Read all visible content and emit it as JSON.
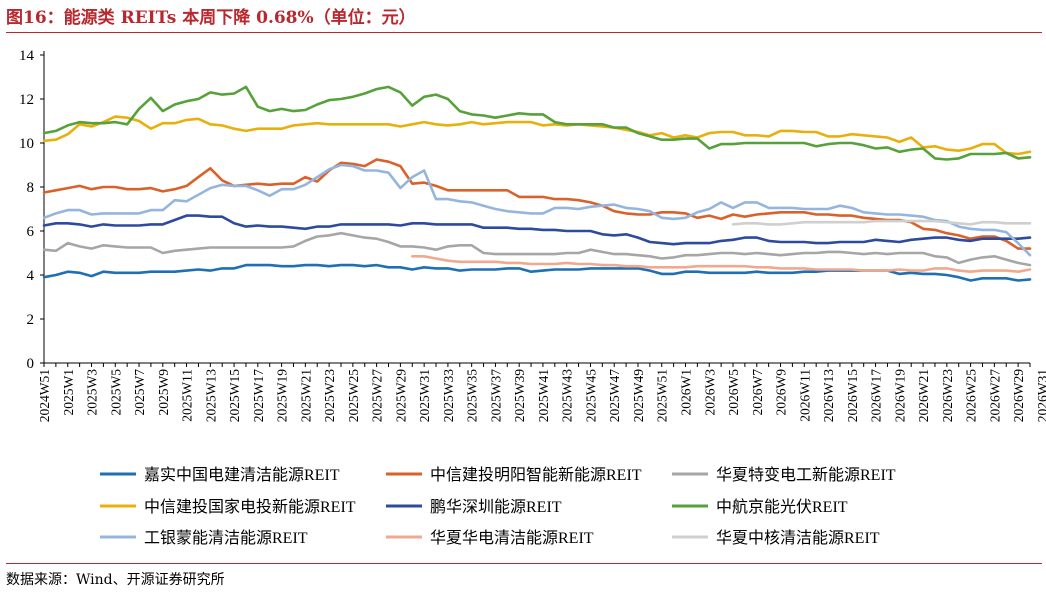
{
  "header": {
    "title": "图16：能源类 REITs 本周下降 0.68%（单位：元）"
  },
  "footer": {
    "source": "数据来源：Wind、开源证券研究所"
  },
  "chart_data": {
    "type": "line",
    "ylim": [
      0,
      14
    ],
    "yticks": [
      0,
      2,
      4,
      6,
      8,
      10,
      12,
      14
    ],
    "x": [
      "2024W51",
      "2025W1",
      "2025W2",
      "2025W3",
      "2025W4",
      "2025W5",
      "2025W6",
      "2025W7",
      "2025W8",
      "2025W9",
      "2025W10",
      "2025W11",
      "2025W12",
      "2025W13",
      "2025W14",
      "2025W15",
      "2025W16",
      "2025W17",
      "2025W18",
      "2025W19",
      "2025W20",
      "2025W21",
      "2025W22",
      "2025W23",
      "2025W24",
      "2025W25",
      "2025W26",
      "2025W27",
      "2025W28",
      "2025W29",
      "2025W30",
      "2025W31",
      "2025W32",
      "2025W33",
      "2025W34",
      "2025W35",
      "2025W36",
      "2025W37",
      "2025W38",
      "2025W39",
      "2025W40",
      "2025W41",
      "2025W42",
      "2025W43",
      "2025W44",
      "2025W45",
      "2025W46",
      "2025W47",
      "2025W48",
      "2025W49",
      "2025W50",
      "2025W51",
      "2025W52",
      "2026W1",
      "2026W2",
      "2026W3",
      "2026W4",
      "2026W5",
      "2026W6",
      "2026W7",
      "2026W8",
      "2026W9",
      "2026W10",
      "2026W11",
      "2026W12",
      "2026W13",
      "2026W14",
      "2026W15",
      "2026W16",
      "2026W17",
      "2026W18",
      "2026W19",
      "2026W20",
      "2026W21",
      "2026W22",
      "2026W23",
      "2026W24",
      "2026W25",
      "2026W26",
      "2026W27",
      "2026W28",
      "2026W29",
      "2026W30",
      "2026W31"
    ],
    "xtick_labels": [
      "2024W51",
      "2025W1",
      "2025W3",
      "2025W5",
      "2025W7",
      "2025W9",
      "2025W11",
      "2025W13",
      "2025W15",
      "2025W17",
      "2025W19",
      "2025W21",
      "2025W23",
      "2025W25",
      "2025W27",
      "2025W29",
      "2025W31",
      "2025W33",
      "2025W35",
      "2025W37",
      "2025W39",
      "2025W41",
      "2025W43",
      "2025W45",
      "2025W47",
      "2025W49",
      "2025W51",
      "2026W1",
      "2026W3",
      "2026W5",
      "2026W7",
      "2026W9",
      "2026W11",
      "2026W13",
      "2026W15",
      "2026W17",
      "2026W19",
      "2026W21",
      "2026W23",
      "2026W25",
      "2026W27",
      "2026W29",
      "2026W31"
    ],
    "series": [
      {
        "name": "嘉实中国电建清洁能源REIT",
        "color": "#1f6fb4",
        "values": [
          3.9,
          4.0,
          4.15,
          4.1,
          3.95,
          4.15,
          4.1,
          4.1,
          4.1,
          4.15,
          4.15,
          4.15,
          4.2,
          4.25,
          4.2,
          4.3,
          4.3,
          4.45,
          4.45,
          4.45,
          4.4,
          4.4,
          4.45,
          4.45,
          4.4,
          4.45,
          4.45,
          4.4,
          4.45,
          4.35,
          4.35,
          4.25,
          4.35,
          4.3,
          4.3,
          4.2,
          4.25,
          4.25,
          4.25,
          4.3,
          4.3,
          4.15,
          4.2,
          4.25,
          4.25,
          4.25,
          4.3,
          4.3,
          4.3,
          4.3,
          4.3,
          4.2,
          4.05,
          4.05,
          4.15,
          4.15,
          4.1,
          4.1,
          4.1,
          4.1,
          4.15,
          4.1,
          4.1,
          4.1,
          4.15,
          4.15,
          4.2,
          4.2,
          4.2,
          4.2,
          4.2,
          4.2,
          4.05,
          4.1,
          4.05,
          4.05,
          4.0,
          3.9,
          3.75,
          3.85,
          3.85,
          3.85,
          3.75,
          3.8
        ]
      },
      {
        "name": "中信建投明阳智能新能源REIT",
        "color": "#d9622b",
        "values": [
          7.75,
          7.85,
          7.95,
          8.05,
          7.9,
          8.0,
          8.0,
          7.9,
          7.9,
          7.95,
          7.8,
          7.9,
          8.05,
          8.45,
          8.85,
          8.3,
          8.05,
          8.1,
          8.15,
          8.1,
          8.15,
          8.15,
          8.45,
          8.25,
          8.75,
          9.1,
          9.05,
          8.95,
          9.25,
          9.15,
          8.95,
          8.15,
          8.2,
          8.05,
          7.85,
          7.85,
          7.85,
          7.85,
          7.85,
          7.85,
          7.55,
          7.55,
          7.55,
          7.45,
          7.45,
          7.4,
          7.3,
          7.15,
          6.9,
          6.8,
          6.75,
          6.75,
          6.85,
          6.85,
          6.8,
          6.6,
          6.7,
          6.55,
          6.75,
          6.65,
          6.75,
          6.8,
          6.85,
          6.85,
          6.85,
          6.75,
          6.75,
          6.7,
          6.7,
          6.6,
          6.55,
          6.5,
          6.5,
          6.4,
          6.1,
          6.05,
          5.9,
          5.8,
          5.65,
          5.75,
          5.75,
          5.55,
          5.2,
          5.2
        ]
      },
      {
        "name": "华夏特变电工新能源REIT",
        "color": "#a6a6a6",
        "values": [
          5.15,
          5.1,
          5.45,
          5.3,
          5.2,
          5.35,
          5.3,
          5.25,
          5.25,
          5.25,
          5.0,
          5.1,
          5.15,
          5.2,
          5.25,
          5.25,
          5.25,
          5.25,
          5.25,
          5.25,
          5.25,
          5.3,
          5.55,
          5.75,
          5.8,
          5.9,
          5.8,
          5.7,
          5.65,
          5.5,
          5.3,
          5.3,
          5.25,
          5.15,
          5.3,
          5.35,
          5.35,
          5.0,
          4.95,
          4.95,
          4.95,
          4.95,
          4.95,
          4.95,
          5.0,
          5.0,
          5.15,
          5.05,
          4.95,
          4.95,
          4.9,
          4.85,
          4.75,
          4.8,
          4.9,
          4.9,
          4.95,
          5.0,
          5.0,
          4.95,
          5.0,
          4.95,
          4.9,
          4.95,
          5.0,
          5.0,
          5.05,
          5.05,
          5.0,
          4.95,
          5.0,
          4.95,
          5.0,
          5.0,
          5.0,
          4.85,
          4.8,
          4.55,
          4.7,
          4.8,
          4.85,
          4.7,
          4.55,
          4.45
        ]
      },
      {
        "name": "中信建投国家电投新能源REIT",
        "color": "#e8b00d",
        "values": [
          10.1,
          10.15,
          10.4,
          10.85,
          10.75,
          10.95,
          11.2,
          11.15,
          11.0,
          10.65,
          10.9,
          10.9,
          11.05,
          11.1,
          10.85,
          10.8,
          10.65,
          10.55,
          10.65,
          10.65,
          10.65,
          10.8,
          10.85,
          10.9,
          10.85,
          10.85,
          10.85,
          10.85,
          10.85,
          10.85,
          10.75,
          10.85,
          10.95,
          10.85,
          10.8,
          10.85,
          10.95,
          10.85,
          10.9,
          10.95,
          10.95,
          10.95,
          10.8,
          10.85,
          10.8,
          10.85,
          10.8,
          10.75,
          10.7,
          10.6,
          10.5,
          10.35,
          10.45,
          10.25,
          10.35,
          10.25,
          10.45,
          10.5,
          10.5,
          10.35,
          10.35,
          10.3,
          10.55,
          10.55,
          10.5,
          10.5,
          10.3,
          10.3,
          10.4,
          10.35,
          10.3,
          10.25,
          10.05,
          10.25,
          9.8,
          9.85,
          9.7,
          9.65,
          9.75,
          9.95,
          9.95,
          9.55,
          9.5,
          9.6
        ]
      },
      {
        "name": "鹏华深圳能源REIT",
        "color": "#2e4a9e",
        "values": [
          6.25,
          6.35,
          6.35,
          6.3,
          6.2,
          6.3,
          6.25,
          6.25,
          6.25,
          6.3,
          6.3,
          6.5,
          6.7,
          6.7,
          6.65,
          6.65,
          6.35,
          6.2,
          6.25,
          6.2,
          6.2,
          6.15,
          6.1,
          6.2,
          6.2,
          6.3,
          6.3,
          6.3,
          6.3,
          6.3,
          6.25,
          6.35,
          6.35,
          6.3,
          6.3,
          6.3,
          6.3,
          6.15,
          6.15,
          6.15,
          6.1,
          6.1,
          6.05,
          6.05,
          6.0,
          6.0,
          6.0,
          5.85,
          5.8,
          5.85,
          5.7,
          5.5,
          5.45,
          5.4,
          5.45,
          5.45,
          5.45,
          5.55,
          5.6,
          5.7,
          5.7,
          5.55,
          5.5,
          5.5,
          5.5,
          5.45,
          5.45,
          5.5,
          5.5,
          5.5,
          5.6,
          5.55,
          5.5,
          5.6,
          5.65,
          5.7,
          5.7,
          5.6,
          5.55,
          5.65,
          5.65,
          5.65,
          5.65,
          5.7
        ]
      },
      {
        "name": "中航京能光伏REIT",
        "color": "#57a13b",
        "values": [
          10.45,
          10.55,
          10.8,
          10.95,
          10.9,
          10.9,
          10.95,
          10.85,
          11.55,
          12.05,
          11.45,
          11.75,
          11.9,
          12.0,
          12.3,
          12.2,
          12.25,
          12.55,
          11.65,
          11.45,
          11.55,
          11.45,
          11.5,
          11.75,
          11.95,
          12.0,
          12.1,
          12.25,
          12.45,
          12.55,
          12.3,
          11.7,
          12.1,
          12.2,
          12.0,
          11.45,
          11.3,
          11.25,
          11.15,
          11.25,
          11.35,
          11.3,
          11.3,
          10.95,
          10.85,
          10.85,
          10.85,
          10.85,
          10.7,
          10.7,
          10.45,
          10.3,
          10.15,
          10.15,
          10.2,
          10.2,
          9.75,
          9.95,
          9.95,
          10.0,
          10.0,
          10.0,
          10.0,
          10.0,
          10.0,
          9.85,
          9.95,
          10.0,
          10.0,
          9.9,
          9.75,
          9.8,
          9.6,
          9.7,
          9.75,
          9.3,
          9.25,
          9.3,
          9.5,
          9.5,
          9.5,
          9.55,
          9.3,
          9.35
        ]
      },
      {
        "name": "工银蒙能清洁能源REIT",
        "color": "#95b5df",
        "values": [
          6.6,
          6.8,
          6.95,
          6.95,
          6.75,
          6.8,
          6.8,
          6.8,
          6.8,
          6.95,
          6.95,
          7.4,
          7.35,
          7.65,
          7.95,
          8.1,
          8.05,
          8.05,
          7.85,
          7.6,
          7.9,
          7.9,
          8.1,
          8.45,
          8.8,
          9.0,
          8.95,
          8.75,
          8.75,
          8.65,
          7.95,
          8.45,
          8.75,
          7.45,
          7.45,
          7.35,
          7.3,
          7.15,
          7.0,
          6.9,
          6.85,
          6.8,
          6.8,
          7.05,
          7.05,
          7.0,
          7.1,
          7.15,
          7.2,
          7.05,
          7.0,
          6.9,
          6.6,
          6.55,
          6.6,
          6.85,
          7.0,
          7.3,
          7.05,
          7.3,
          7.3,
          7.05,
          7.05,
          7.05,
          7.0,
          7.0,
          7.0,
          7.15,
          7.05,
          6.85,
          6.8,
          6.75,
          6.75,
          6.7,
          6.65,
          6.5,
          6.45,
          6.2,
          6.1,
          6.05,
          6.05,
          5.95,
          5.45,
          4.9
        ]
      },
      {
        "name": "华夏华电清洁能源REIT",
        "color": "#f0a98e",
        "values": [
          null,
          null,
          null,
          null,
          null,
          null,
          null,
          null,
          null,
          null,
          null,
          null,
          null,
          null,
          null,
          null,
          null,
          null,
          null,
          null,
          null,
          null,
          null,
          null,
          null,
          null,
          null,
          null,
          null,
          null,
          null,
          4.85,
          4.85,
          4.75,
          4.65,
          4.6,
          4.6,
          4.6,
          4.6,
          4.55,
          4.55,
          4.5,
          4.5,
          4.5,
          4.55,
          4.5,
          4.5,
          4.45,
          4.45,
          4.4,
          4.4,
          4.35,
          4.35,
          4.35,
          4.35,
          4.4,
          4.4,
          4.4,
          4.4,
          4.4,
          4.35,
          4.35,
          4.3,
          4.3,
          4.3,
          4.25,
          4.25,
          4.25,
          4.25,
          4.2,
          4.2,
          4.2,
          4.25,
          4.2,
          4.2,
          4.3,
          4.3,
          4.2,
          4.15,
          4.2,
          4.2,
          4.2,
          4.15,
          4.25
        ]
      },
      {
        "name": "华夏中核清洁能源REIT",
        "color": "#cfcfcf",
        "values": [
          null,
          null,
          null,
          null,
          null,
          null,
          null,
          null,
          null,
          null,
          null,
          null,
          null,
          null,
          null,
          null,
          null,
          null,
          null,
          null,
          null,
          null,
          null,
          null,
          null,
          null,
          null,
          null,
          null,
          null,
          null,
          null,
          null,
          null,
          null,
          null,
          null,
          null,
          null,
          null,
          null,
          null,
          null,
          null,
          null,
          null,
          null,
          null,
          null,
          null,
          null,
          null,
          null,
          null,
          null,
          null,
          null,
          null,
          6.3,
          6.35,
          6.35,
          6.3,
          6.3,
          6.35,
          6.4,
          6.4,
          6.4,
          6.4,
          6.4,
          6.4,
          6.45,
          6.45,
          6.45,
          6.45,
          6.45,
          6.45,
          6.4,
          6.35,
          6.3,
          6.4,
          6.4,
          6.35,
          6.35,
          6.35
        ]
      }
    ]
  }
}
